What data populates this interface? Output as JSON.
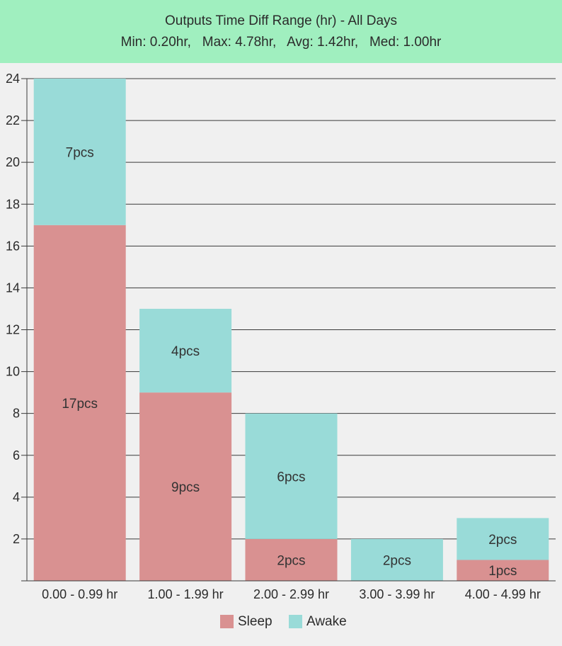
{
  "header": {
    "title": "Outputs Time Diff Range (hr) - All Days",
    "stats": "Min: 0.20hr,   Max: 4.78hr,   Avg: 1.42hr,   Med: 1.00hr"
  },
  "colors": {
    "header_bg": "#a0efbf",
    "sleep": "#d99191",
    "awake": "#99dbd8",
    "background": "#f0f0f0"
  },
  "chart_data": {
    "type": "bar",
    "stacked": true,
    "title": "Outputs Time Diff Range (hr) - All Days",
    "subtitle": "Min: 0.20hr,   Max: 4.78hr,   Avg: 1.42hr,   Med: 1.00hr",
    "categories": [
      "0.00 - 0.99 hr",
      "1.00 - 1.99 hr",
      "2.00 - 2.99 hr",
      "3.00 - 3.99 hr",
      "4.00 - 4.99 hr"
    ],
    "series": [
      {
        "name": "Sleep",
        "color": "#d99191",
        "values": [
          17,
          9,
          2,
          0,
          1
        ],
        "labels": [
          "17pcs",
          "9pcs",
          "2pcs",
          "",
          "1pcs"
        ]
      },
      {
        "name": "Awake",
        "color": "#99dbd8",
        "values": [
          7,
          4,
          6,
          2,
          2
        ],
        "labels": [
          "7pcs",
          "4pcs",
          "6pcs",
          "2pcs",
          "2pcs"
        ]
      }
    ],
    "yticks": [
      2,
      4,
      6,
      8,
      10,
      12,
      14,
      16,
      18,
      20,
      22,
      24
    ],
    "ylim": [
      0,
      24
    ],
    "xlabel": "",
    "ylabel": "",
    "grid": true,
    "legend_position": "bottom-center"
  }
}
